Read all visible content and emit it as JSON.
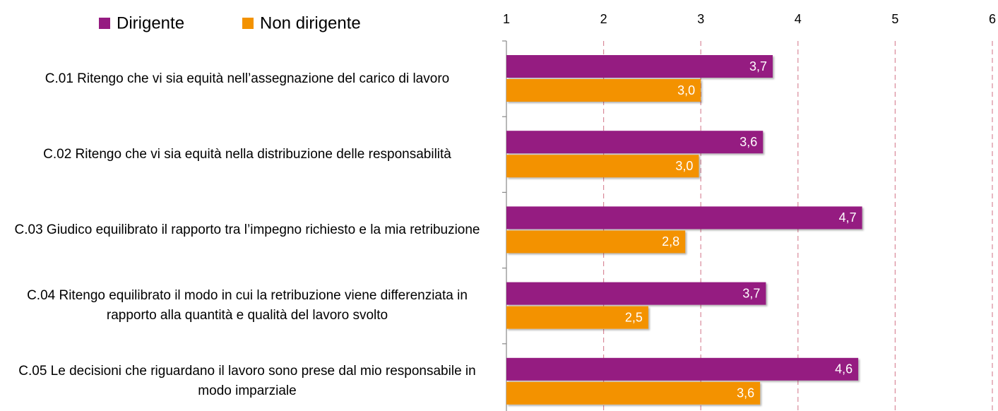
{
  "chart_data": {
    "type": "barh",
    "categories": [
      "C.01 Ritengo che vi sia equità nell’assegnazione del carico di lavoro",
      "C.02 Ritengo che vi sia equità nella distribuzione delle responsabilità",
      "C.03 Giudico equilibrato il rapporto tra l’impegno richiesto e la mia retribuzione",
      "C.04 Ritengo equilibrato il modo in cui la retribuzione viene differenziata in rapporto alla quantità e qualità del lavoro svolto",
      "C.05 Le decisioni che riguardano il lavoro sono prese dal mio responsabile in modo imparziale"
    ],
    "series": [
      {
        "name": "Dirigente",
        "color": "#951b81",
        "values": [
          3.74,
          3.64,
          4.66,
          3.67,
          4.62
        ],
        "value_labels": [
          "3,7",
          "3,6",
          "4,7",
          "3,7",
          "4,6"
        ]
      },
      {
        "name": "Non dirigente",
        "color": "#f39200",
        "values": [
          3.0,
          2.98,
          2.84,
          2.46,
          3.61
        ],
        "value_labels": [
          "3,0",
          "3,0",
          "2,8",
          "2,5",
          "3,6"
        ]
      }
    ],
    "xlim": [
      1,
      6
    ],
    "xticks": [
      1,
      2,
      3,
      4,
      5,
      6
    ],
    "grid": true,
    "legend": "top"
  }
}
